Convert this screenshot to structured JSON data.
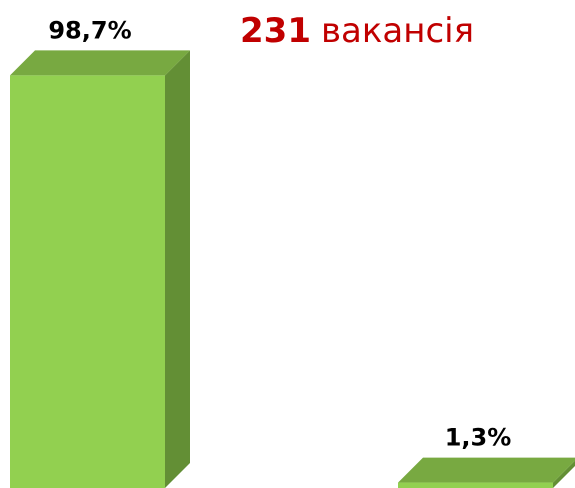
{
  "chart_data": {
    "type": "bar3d",
    "title_count": 231,
    "title": "вакансія",
    "categories": [
      null,
      null
    ],
    "values": [
      98.7,
      1.3
    ],
    "value_labels": [
      "98,7%",
      "1,3%"
    ],
    "color": "#92d050",
    "top_color": "#78a941",
    "side_color": "#638f35",
    "title_color": "#c00000"
  }
}
